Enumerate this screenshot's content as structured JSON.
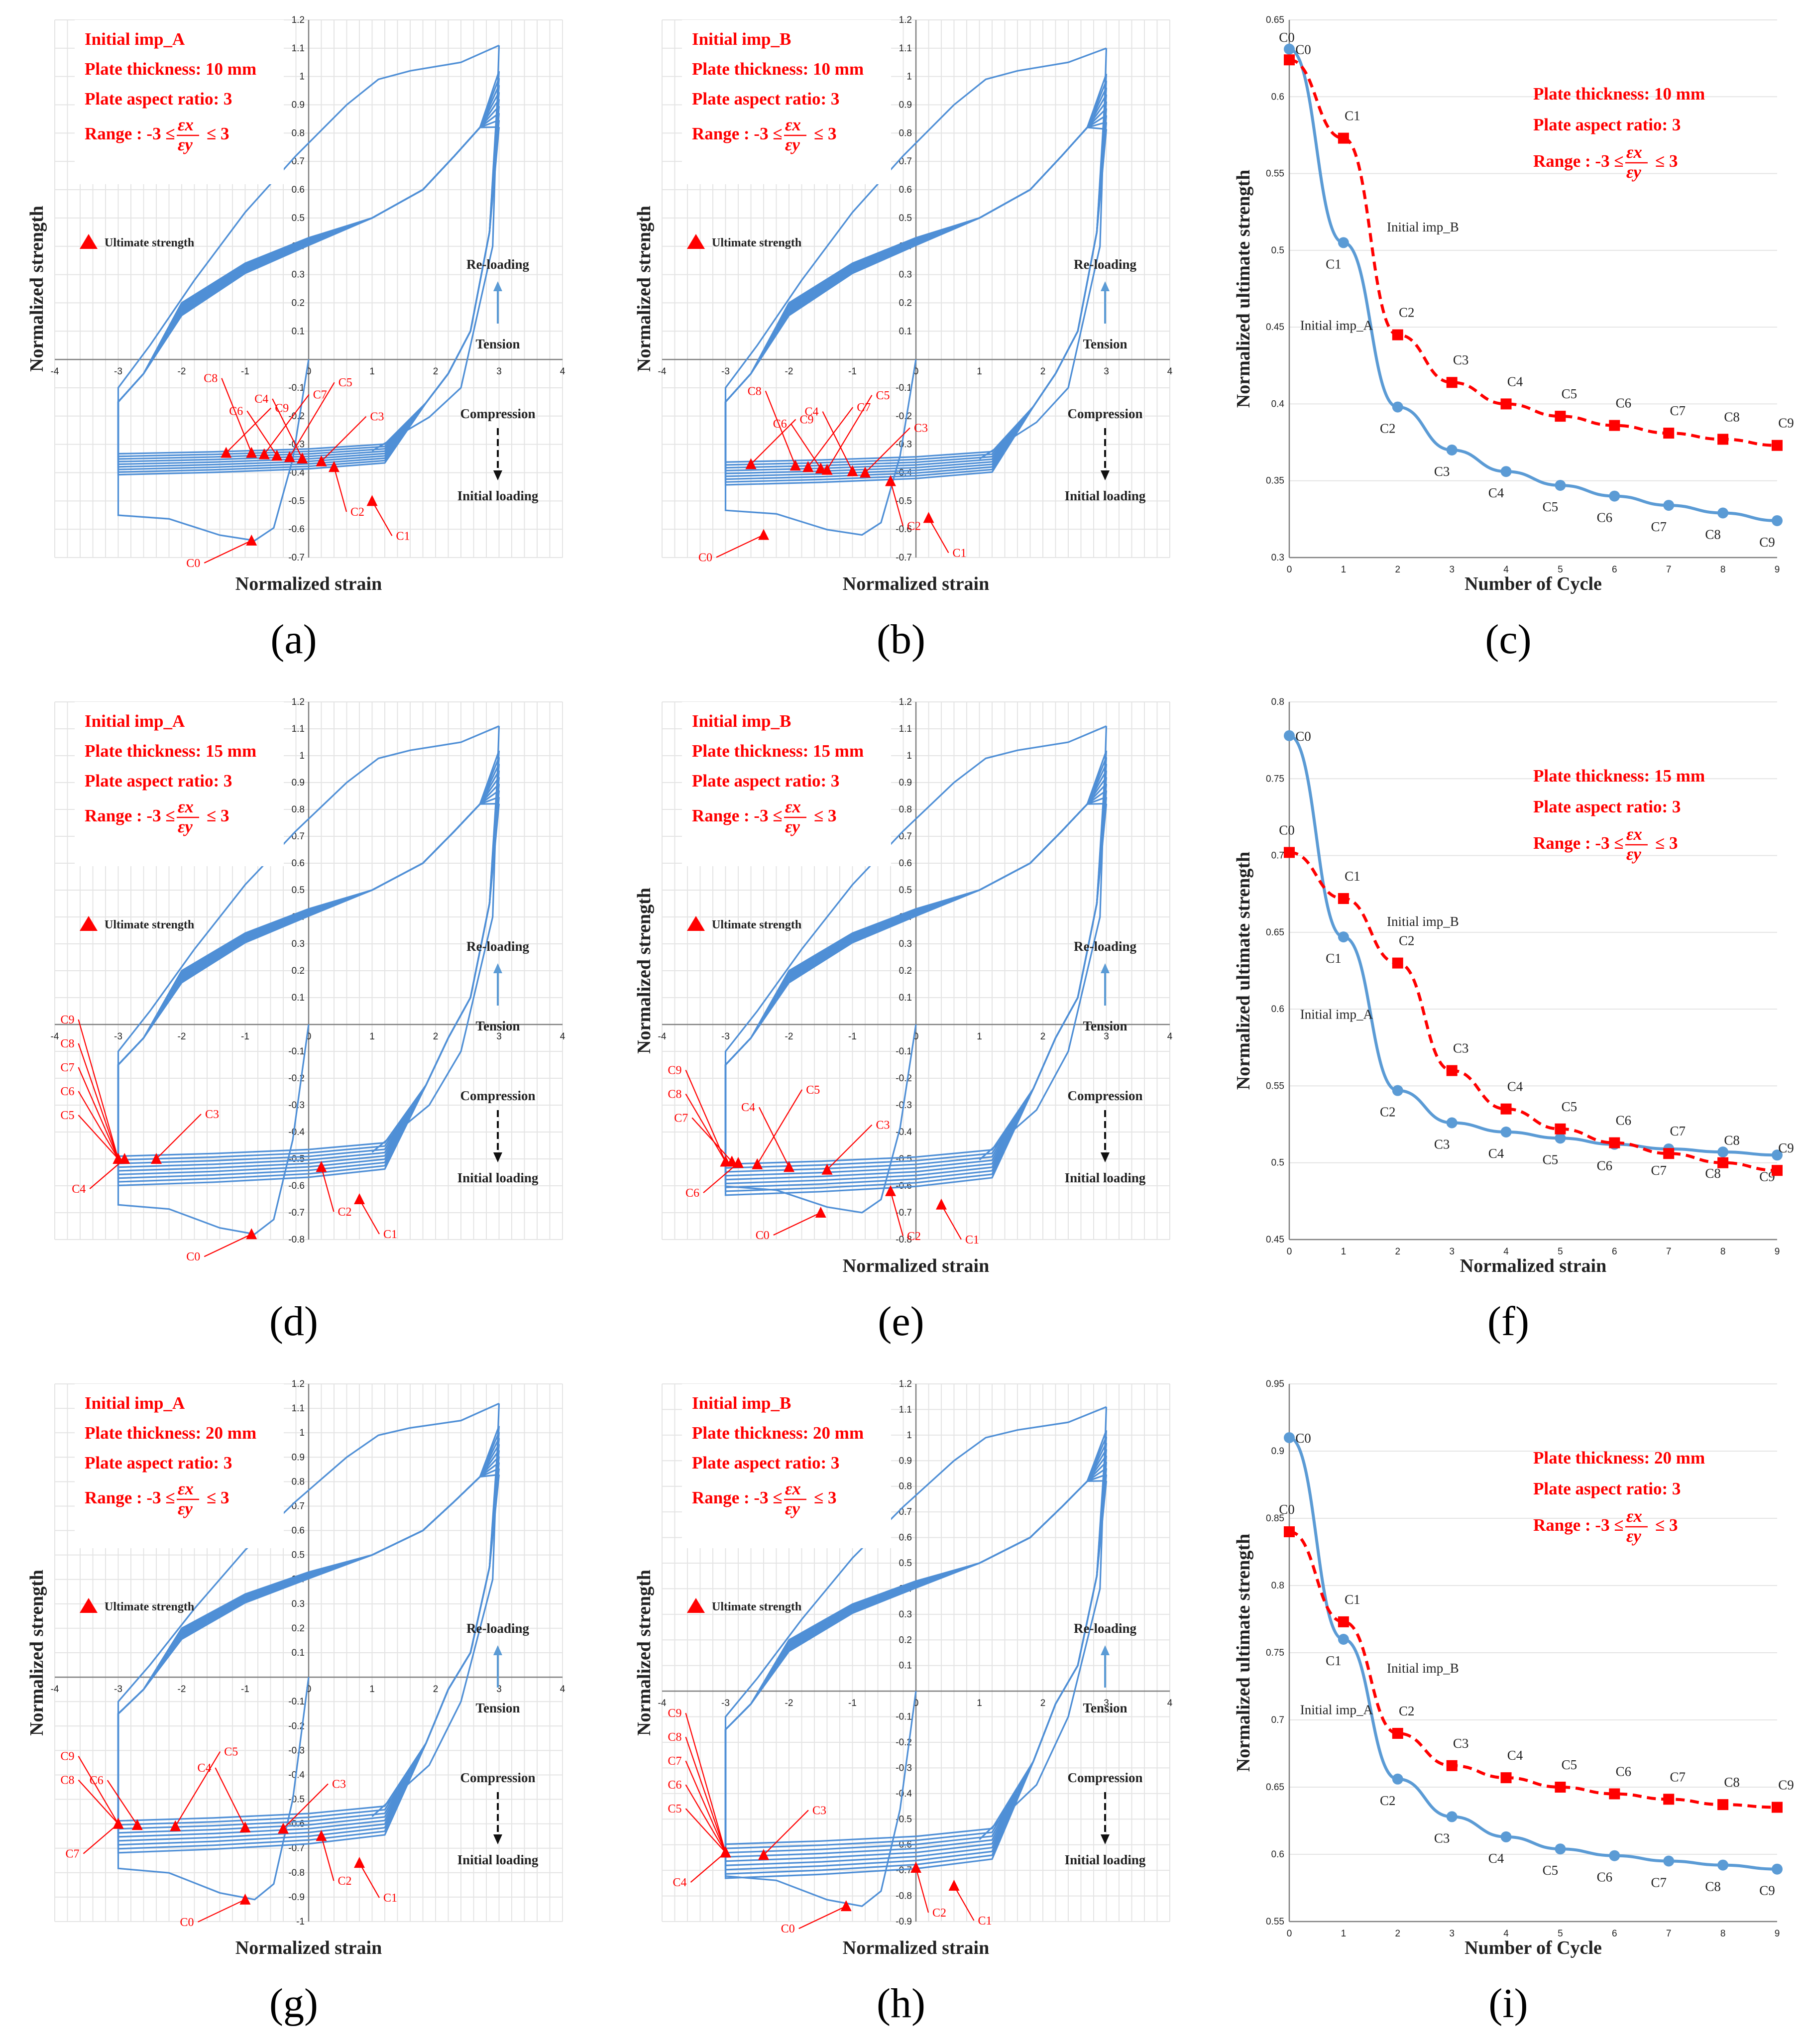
{
  "colors": {
    "loop": "#4f8fd6",
    "imp_a": "#5b9bd5",
    "imp_b": "#ff0000",
    "info_text": "#ff0000",
    "marker": "#ff0000"
  },
  "labels": {
    "ultimate_strength": "Ultimate strength",
    "reloading": "Re-loading",
    "tension": "Tension",
    "compression": "Compression",
    "initial_loading": "Initial loading",
    "range_prefix": "Range : -3 ≤",
    "range_suffix": "≤ 3",
    "eps_x": "εx",
    "eps_y": "εy"
  },
  "chart_data": [
    {
      "id": "a",
      "panel_label": "(a)",
      "type": "line",
      "imperfection": "Initial imp_A",
      "thickness": "Plate thickness: 10 mm",
      "aspect_ratio": "Plate aspect ratio: 3",
      "xlabel": "Normalized strain",
      "ylabel": "Normalized strength",
      "xlim": [
        -4,
        4
      ],
      "ylim": [
        -0.7,
        1.2
      ],
      "xstep": 1,
      "ystep": 0.1,
      "initial_ultimate": -0.64,
      "peak": 1.11,
      "comp_level": -0.34,
      "cycles": 9,
      "markers": [
        {
          "label": "C0",
          "x": -0.9,
          "y": -0.64
        },
        {
          "label": "C1",
          "x": 1.0,
          "y": -0.5
        },
        {
          "label": "C2",
          "x": 0.4,
          "y": -0.38
        },
        {
          "label": "C3",
          "x": 0.2,
          "y": -0.36
        },
        {
          "label": "C4",
          "x": -0.1,
          "y": -0.35
        },
        {
          "label": "C5",
          "x": -0.3,
          "y": -0.345
        },
        {
          "label": "C6",
          "x": -0.5,
          "y": -0.34
        },
        {
          "label": "C7",
          "x": -0.7,
          "y": -0.335
        },
        {
          "label": "C8",
          "x": -0.9,
          "y": -0.33
        },
        {
          "label": "C9",
          "x": -1.3,
          "y": -0.33
        }
      ]
    },
    {
      "id": "b",
      "panel_label": "(b)",
      "type": "line",
      "imperfection": "Initial imp_B",
      "thickness": "Plate thickness: 10 mm",
      "aspect_ratio": "Plate aspect ratio: 3",
      "xlabel": "Normalized strain",
      "ylabel": "Normalized strength",
      "xlim": [
        -4,
        4
      ],
      "ylim": [
        -0.7,
        1.2
      ],
      "xstep": 1,
      "ystep": 0.1,
      "initial_ultimate": -0.62,
      "peak": 1.1,
      "comp_level": -0.37,
      "cycles": 9,
      "markers": [
        {
          "label": "C0",
          "x": -2.4,
          "y": -0.62
        },
        {
          "label": "C1",
          "x": 0.2,
          "y": -0.56
        },
        {
          "label": "C2",
          "x": -0.4,
          "y": -0.43
        },
        {
          "label": "C3",
          "x": -0.8,
          "y": -0.4
        },
        {
          "label": "C4",
          "x": -1.0,
          "y": -0.395
        },
        {
          "label": "C5",
          "x": -1.4,
          "y": -0.39
        },
        {
          "label": "C6",
          "x": -1.5,
          "y": -0.385
        },
        {
          "label": "C7",
          "x": -1.7,
          "y": -0.38
        },
        {
          "label": "C8",
          "x": -1.9,
          "y": -0.375
        },
        {
          "label": "C9",
          "x": -2.6,
          "y": -0.37
        }
      ]
    },
    {
      "id": "c",
      "panel_label": "(c)",
      "type": "line",
      "thickness": "Plate thickness: 10 mm",
      "aspect_ratio": "Plate aspect ratio: 3",
      "xlabel": "Number of Cycle",
      "ylabel": "Normalized ultimate strength",
      "xlim": [
        0,
        9
      ],
      "ylim": [
        0.3,
        0.65
      ],
      "ystep": 0.05,
      "categories": [
        "C0",
        "C1",
        "C2",
        "C3",
        "C4",
        "C5",
        "C6",
        "C7",
        "C8",
        "C9"
      ],
      "series": [
        {
          "name": "Initial imp_A",
          "values": [
            0.631,
            0.505,
            0.398,
            0.37,
            0.356,
            0.347,
            0.34,
            0.334,
            0.329,
            0.324
          ]
        },
        {
          "name": "Initial imp_B",
          "values": [
            0.624,
            0.573,
            0.445,
            0.414,
            0.4,
            0.392,
            0.386,
            0.381,
            0.377,
            0.373
          ]
        }
      ]
    },
    {
      "id": "d",
      "panel_label": "(d)",
      "type": "line",
      "imperfection": "Initial imp_A",
      "thickness": "Plate thickness: 15 mm",
      "aspect_ratio": "Plate aspect ratio: 3",
      "xlabel": "",
      "ylabel": "",
      "xlim": [
        -4,
        4
      ],
      "ylim": [
        -0.8,
        1.2
      ],
      "xstep": 1,
      "ystep": 0.1,
      "initial_ultimate": -0.78,
      "peak": 1.11,
      "comp_level": -0.5,
      "cycles": 9,
      "markers": [
        {
          "label": "C0",
          "x": -0.9,
          "y": -0.78
        },
        {
          "label": "C1",
          "x": 0.8,
          "y": -0.65
        },
        {
          "label": "C2",
          "x": 0.2,
          "y": -0.53
        },
        {
          "label": "C3",
          "x": -2.4,
          "y": -0.5
        },
        {
          "label": "C4",
          "x": -2.9,
          "y": -0.5
        },
        {
          "label": "C5",
          "x": -3.0,
          "y": -0.5
        },
        {
          "label": "C6",
          "x": -3.0,
          "y": -0.5
        },
        {
          "label": "C7",
          "x": -3.0,
          "y": -0.5
        },
        {
          "label": "C8",
          "x": -3.0,
          "y": -0.5
        },
        {
          "label": "C9",
          "x": -3.0,
          "y": -0.5
        }
      ]
    },
    {
      "id": "e",
      "panel_label": "(e)",
      "type": "line",
      "imperfection": "Initial imp_B",
      "thickness": "Plate thickness: 15 mm",
      "aspect_ratio": "Plate aspect ratio: 3",
      "xlabel": "Normalized strain",
      "ylabel": "Normalized strength",
      "xlim": [
        -4,
        4
      ],
      "ylim": [
        -0.8,
        1.2
      ],
      "xstep": 1,
      "ystep": 0.1,
      "initial_ultimate": -0.7,
      "peak": 1.11,
      "comp_level": -0.53,
      "cycles": 9,
      "markers": [
        {
          "label": "C0",
          "x": -1.5,
          "y": -0.7
        },
        {
          "label": "C1",
          "x": 0.4,
          "y": -0.67
        },
        {
          "label": "C2",
          "x": -0.4,
          "y": -0.62
        },
        {
          "label": "C3",
          "x": -1.4,
          "y": -0.54
        },
        {
          "label": "C4",
          "x": -2.0,
          "y": -0.53
        },
        {
          "label": "C5",
          "x": -2.5,
          "y": -0.52
        },
        {
          "label": "C6",
          "x": -2.8,
          "y": -0.515
        },
        {
          "label": "C7",
          "x": -2.9,
          "y": -0.51
        },
        {
          "label": "C8",
          "x": -3.0,
          "y": -0.51
        },
        {
          "label": "C9",
          "x": -3.0,
          "y": -0.51
        }
      ]
    },
    {
      "id": "f",
      "panel_label": "(f)",
      "type": "line",
      "thickness": "Plate thickness: 15 mm",
      "aspect_ratio": "Plate aspect ratio: 3",
      "xlabel": "Normalized strain",
      "ylabel": "Normalized ultimate strength",
      "xlim": [
        0,
        9
      ],
      "ylim": [
        0.45,
        0.8
      ],
      "ystep": 0.05,
      "categories": [
        "C0",
        "C1",
        "C2",
        "C3",
        "C4",
        "C5",
        "C6",
        "C7",
        "C8",
        "C9"
      ],
      "series": [
        {
          "name": "Initial imp_A",
          "values": [
            0.778,
            0.647,
            0.547,
            0.526,
            0.52,
            0.516,
            0.512,
            0.509,
            0.507,
            0.505
          ]
        },
        {
          "name": "Initial imp_B",
          "values": [
            0.702,
            0.672,
            0.63,
            0.56,
            0.535,
            0.522,
            0.513,
            0.506,
            0.5,
            0.495
          ]
        }
      ]
    },
    {
      "id": "g",
      "panel_label": "(g)",
      "type": "line",
      "imperfection": "Initial imp_A",
      "thickness": "Plate thickness: 20 mm",
      "aspect_ratio": "Plate aspect ratio: 3",
      "xlabel": "Normalized strain",
      "ylabel": "Normalized strength",
      "xlim": [
        -4,
        4
      ],
      "ylim": [
        -1.0,
        1.2
      ],
      "xstep": 1,
      "ystep": 0.1,
      "initial_ultimate": -0.91,
      "peak": 1.12,
      "comp_level": -0.6,
      "cycles": 9,
      "markers": [
        {
          "label": "C0",
          "x": -1.0,
          "y": -0.91
        },
        {
          "label": "C1",
          "x": 0.8,
          "y": -0.76
        },
        {
          "label": "C2",
          "x": 0.2,
          "y": -0.65
        },
        {
          "label": "C3",
          "x": -0.4,
          "y": -0.62
        },
        {
          "label": "C4",
          "x": -1.0,
          "y": -0.615
        },
        {
          "label": "C5",
          "x": -2.1,
          "y": -0.61
        },
        {
          "label": "C6",
          "x": -2.7,
          "y": -0.605
        },
        {
          "label": "C7",
          "x": -3.0,
          "y": -0.6
        },
        {
          "label": "C8",
          "x": -3.0,
          "y": -0.6
        },
        {
          "label": "C9",
          "x": -3.0,
          "y": -0.6
        }
      ]
    },
    {
      "id": "h",
      "panel_label": "(h)",
      "type": "line",
      "imperfection": "Initial imp_B",
      "thickness": "Plate thickness: 20 mm",
      "aspect_ratio": "Plate aspect ratio: 3",
      "xlabel": "Normalized strain",
      "ylabel": "Normalized strength",
      "xlim": [
        -4,
        4
      ],
      "ylim": [
        -0.9,
        1.2
      ],
      "xstep": 1,
      "ystep": 0.1,
      "initial_ultimate": -0.84,
      "peak": 1.11,
      "comp_level": -0.61,
      "cycles": 9,
      "markers": [
        {
          "label": "C0",
          "x": -1.1,
          "y": -0.84
        },
        {
          "label": "C1",
          "x": 0.6,
          "y": -0.76
        },
        {
          "label": "C2",
          "x": 0.0,
          "y": -0.69
        },
        {
          "label": "C3",
          "x": -2.4,
          "y": -0.64
        },
        {
          "label": "C4",
          "x": -3.0,
          "y": -0.63
        },
        {
          "label": "C5",
          "x": -3.0,
          "y": -0.63
        },
        {
          "label": "C6",
          "x": -3.0,
          "y": -0.63
        },
        {
          "label": "C7",
          "x": -3.0,
          "y": -0.63
        },
        {
          "label": "C8",
          "x": -3.0,
          "y": -0.63
        },
        {
          "label": "C9",
          "x": -3.0,
          "y": -0.63
        }
      ]
    },
    {
      "id": "i",
      "panel_label": "(i)",
      "type": "line",
      "thickness": "Plate thickness: 20 mm",
      "aspect_ratio": "Plate aspect ratio: 3",
      "xlabel": "Number of Cycle",
      "ylabel": "Normalized ultimate strength",
      "xlim": [
        0,
        9
      ],
      "ylim": [
        0.55,
        0.95
      ],
      "ystep": 0.05,
      "categories": [
        "C0",
        "C1",
        "C2",
        "C3",
        "C4",
        "C5",
        "C6",
        "C7",
        "C8",
        "C9"
      ],
      "series": [
        {
          "name": "Initial imp_A",
          "values": [
            0.91,
            0.76,
            0.656,
            0.628,
            0.613,
            0.604,
            0.599,
            0.595,
            0.592,
            0.589
          ]
        },
        {
          "name": "Initial imp_B",
          "values": [
            0.84,
            0.773,
            0.69,
            0.666,
            0.657,
            0.65,
            0.645,
            0.641,
            0.637,
            0.635
          ]
        }
      ]
    }
  ]
}
